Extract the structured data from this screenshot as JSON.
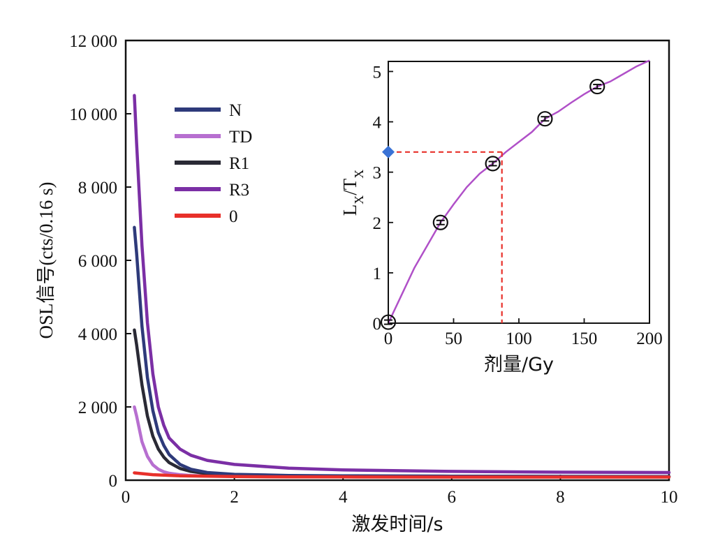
{
  "chart_data": [
    {
      "type": "line",
      "xlabel": "激发时间/s",
      "ylabel": "OSL信号(cts/0.16 s)",
      "xlim": [
        0,
        10
      ],
      "ylim": [
        0,
        12000
      ],
      "xticks": [
        0,
        2,
        4,
        6,
        8,
        10
      ],
      "yticks": [
        0,
        2000,
        4000,
        6000,
        8000,
        10000,
        12000
      ],
      "xtick_labels": [
        "0",
        "2",
        "4",
        "6",
        "8",
        "10"
      ],
      "ytick_labels": [
        "0",
        "2 000",
        "4 000",
        "6 000",
        "8 000",
        "10 000",
        "12 000"
      ],
      "legend_position": "upper-left",
      "series": [
        {
          "name": "N",
          "color": "#2e3a7a",
          "x": [
            0.16,
            0.2,
            0.3,
            0.4,
            0.5,
            0.6,
            0.7,
            0.8,
            1.0,
            1.2,
            1.5,
            2.0,
            3.0,
            4.0,
            6.0,
            8.0,
            10.0
          ],
          "y": [
            6900,
            6200,
            4200,
            2800,
            1900,
            1300,
            950,
            700,
            430,
            300,
            210,
            160,
            130,
            120,
            110,
            105,
            100
          ]
        },
        {
          "name": "TD",
          "color": "#b76fd0",
          "x": [
            0.16,
            0.2,
            0.3,
            0.4,
            0.5,
            0.6,
            0.7,
            0.8,
            1.0,
            1.2,
            1.5,
            2.0,
            3.0,
            4.0,
            6.0,
            8.0,
            10.0
          ],
          "y": [
            2000,
            1750,
            1050,
            650,
            420,
            300,
            230,
            190,
            150,
            130,
            115,
            105,
            100,
            100,
            100,
            100,
            100
          ]
        },
        {
          "name": "R1",
          "color": "#2a2a35",
          "x": [
            0.16,
            0.2,
            0.3,
            0.4,
            0.5,
            0.6,
            0.7,
            0.8,
            1.0,
            1.2,
            1.5,
            2.0,
            3.0,
            4.0,
            6.0,
            8.0,
            10.0
          ],
          "y": [
            4100,
            3700,
            2600,
            1750,
            1200,
            850,
            630,
            480,
            320,
            240,
            180,
            140,
            120,
            110,
            105,
            100,
            100
          ]
        },
        {
          "name": "R3",
          "color": "#7b2fa5",
          "x": [
            0.16,
            0.2,
            0.3,
            0.4,
            0.5,
            0.6,
            0.7,
            0.8,
            1.0,
            1.2,
            1.5,
            2.0,
            3.0,
            4.0,
            6.0,
            8.0,
            10.0
          ],
          "y": [
            10500,
            9200,
            6400,
            4300,
            2900,
            2000,
            1500,
            1150,
            850,
            680,
            540,
            430,
            330,
            280,
            240,
            220,
            210
          ]
        },
        {
          "name": "0",
          "color": "#e8302a",
          "x": [
            0.16,
            0.5,
            1.0,
            2.0,
            3.0,
            4.0,
            6.0,
            8.0,
            10.0
          ],
          "y": [
            200,
            150,
            120,
            100,
            90,
            90,
            85,
            85,
            85
          ]
        }
      ]
    },
    {
      "type": "scatter",
      "xlabel": "剂量/Gy",
      "ylabel": "LX/TX",
      "ylabel_main_1": "L",
      "ylabel_sub_1": "X",
      "ylabel_main_2": "/T",
      "ylabel_sub_2": "X",
      "xlim": [
        0,
        200
      ],
      "ylim": [
        0,
        5.2
      ],
      "xticks": [
        0,
        50,
        100,
        150,
        200
      ],
      "yticks": [
        0,
        1,
        2,
        3,
        4,
        5
      ],
      "xtick_labels": [
        "0",
        "50",
        "100",
        "150",
        "200"
      ],
      "ytick_labels": [
        "0",
        "1",
        "2",
        "3",
        "4",
        "5"
      ],
      "points": {
        "x": [
          0,
          40,
          80,
          120,
          160
        ],
        "y": [
          0.02,
          2.0,
          3.17,
          4.06,
          4.7
        ],
        "marker": "circle-with-errorbar",
        "color": "#111111"
      },
      "fit_curve": {
        "color": "#b050c8",
        "x": [
          0,
          10,
          20,
          30,
          40,
          50,
          60,
          70,
          80,
          90,
          100,
          110,
          120,
          130,
          140,
          150,
          160,
          170,
          180,
          190,
          200
        ],
        "y": [
          0.0,
          0.55,
          1.1,
          1.55,
          2.0,
          2.36,
          2.7,
          2.97,
          3.17,
          3.4,
          3.6,
          3.8,
          4.06,
          4.2,
          4.38,
          4.55,
          4.7,
          4.8,
          4.95,
          5.1,
          5.22
        ]
      },
      "natural_signal": {
        "marker": "diamond",
        "color": "#3a73d6",
        "y": 3.4,
        "equivalent_dose": 87,
        "guide_color": "#e8302a"
      }
    }
  ]
}
